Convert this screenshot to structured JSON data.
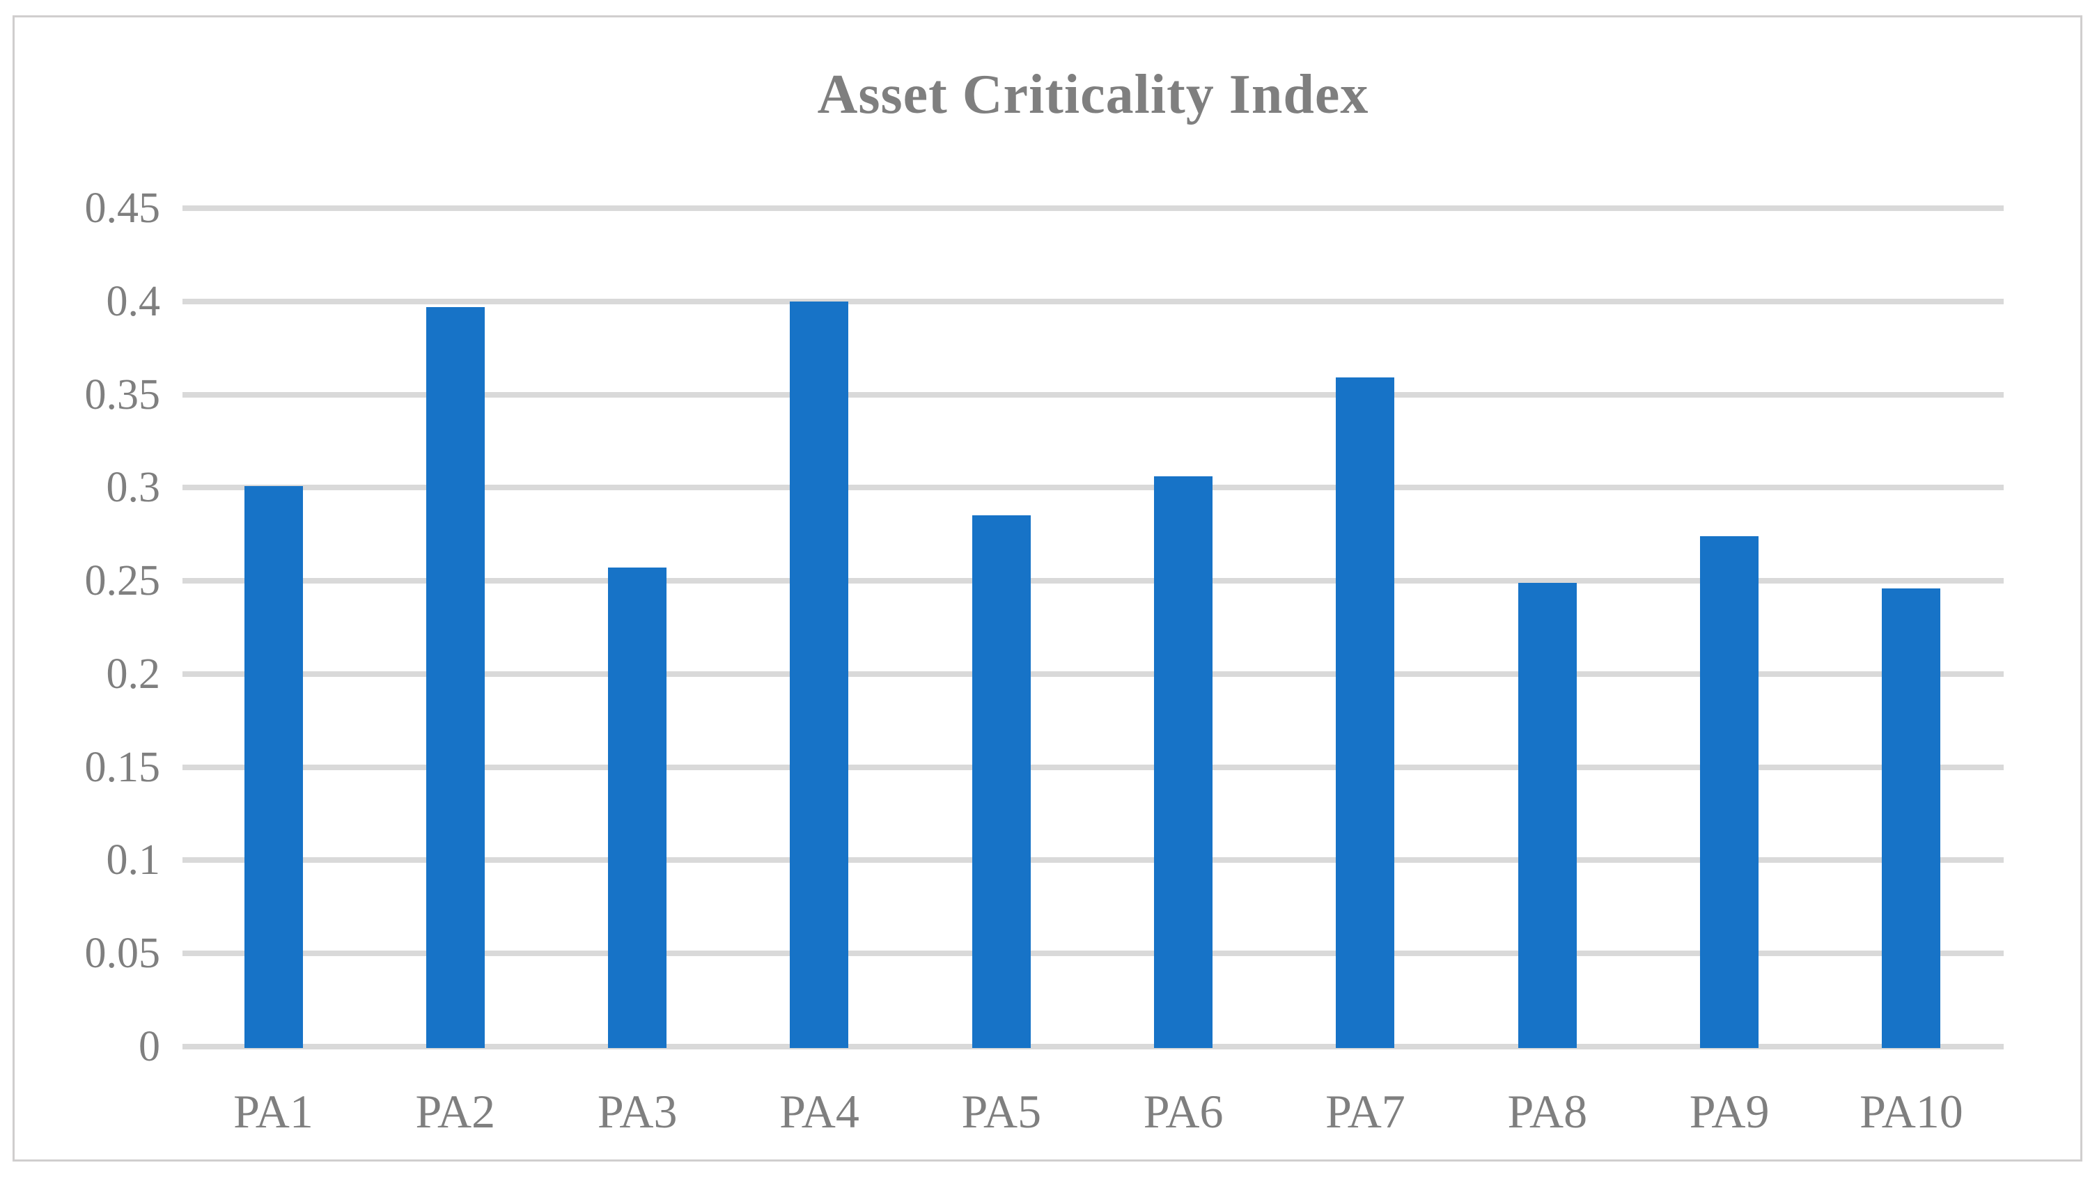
{
  "chart": {
    "title": "Asset Criticality Index"
  },
  "colors": {
    "bar": "#1773c7",
    "gridline": "#d9d9d9",
    "axis_text": "#7f7f7f",
    "frame_border": "#d0cece",
    "background": "#ffffff"
  },
  "y_axis": {
    "tick_labels": [
      "0",
      "0.05",
      "0.1",
      "0.15",
      "0.2",
      "0.25",
      "0.3",
      "0.35",
      "0.4",
      "0.45"
    ],
    "tick_values": [
      0,
      0.05,
      0.1,
      0.15,
      0.2,
      0.25,
      0.3,
      0.35,
      0.4,
      0.45
    ]
  },
  "chart_data": {
    "type": "bar",
    "title": "Asset Criticality Index",
    "categories": [
      "PA1",
      "PA2",
      "PA3",
      "PA4",
      "PA5",
      "PA6",
      "PA7",
      "PA8",
      "PA9",
      "PA10"
    ],
    "values": [
      0.301,
      0.397,
      0.257,
      0.4,
      0.285,
      0.306,
      0.359,
      0.249,
      0.274,
      0.246
    ],
    "xlabel": "",
    "ylabel": "",
    "ylim": [
      0,
      0.45
    ],
    "ytick_step": 0.05,
    "grid": true,
    "legend": false,
    "bar_color": "#1773c7"
  }
}
